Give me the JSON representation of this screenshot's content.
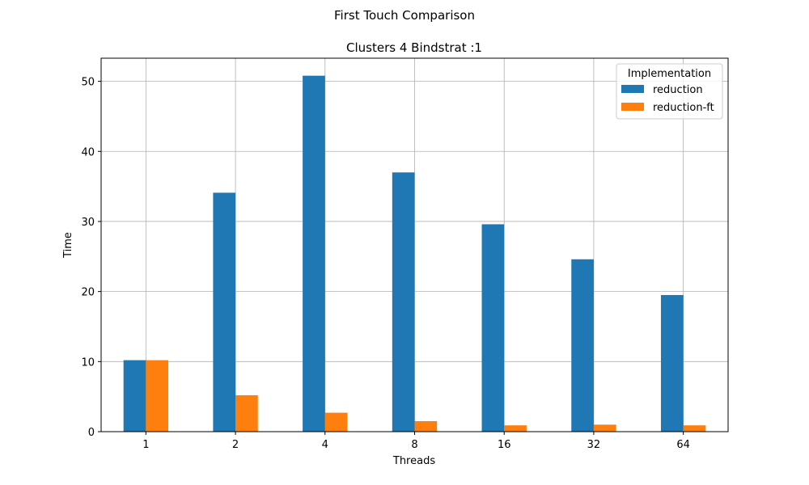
{
  "chart_data": {
    "type": "bar",
    "suptitle": "First Touch Comparison",
    "title": "Clusters 4 Bindstrat :1",
    "xlabel": "Threads",
    "ylabel": "Time",
    "categories": [
      "1",
      "2",
      "4",
      "8",
      "16",
      "32",
      "64"
    ],
    "series": [
      {
        "name": "reduction",
        "color": "#1f77b4",
        "values": [
          10.2,
          34.1,
          50.8,
          37.0,
          29.6,
          24.6,
          19.5
        ]
      },
      {
        "name": "reduction-ft",
        "color": "#ff7f0e",
        "values": [
          10.2,
          5.2,
          2.7,
          1.5,
          0.9,
          1.0,
          0.9
        ]
      }
    ],
    "ylim": [
      0,
      53.3
    ],
    "yticks": [
      0,
      10,
      20,
      30,
      40,
      50
    ],
    "grid": true,
    "legend": {
      "title": "Implementation",
      "position": "top-right"
    }
  }
}
